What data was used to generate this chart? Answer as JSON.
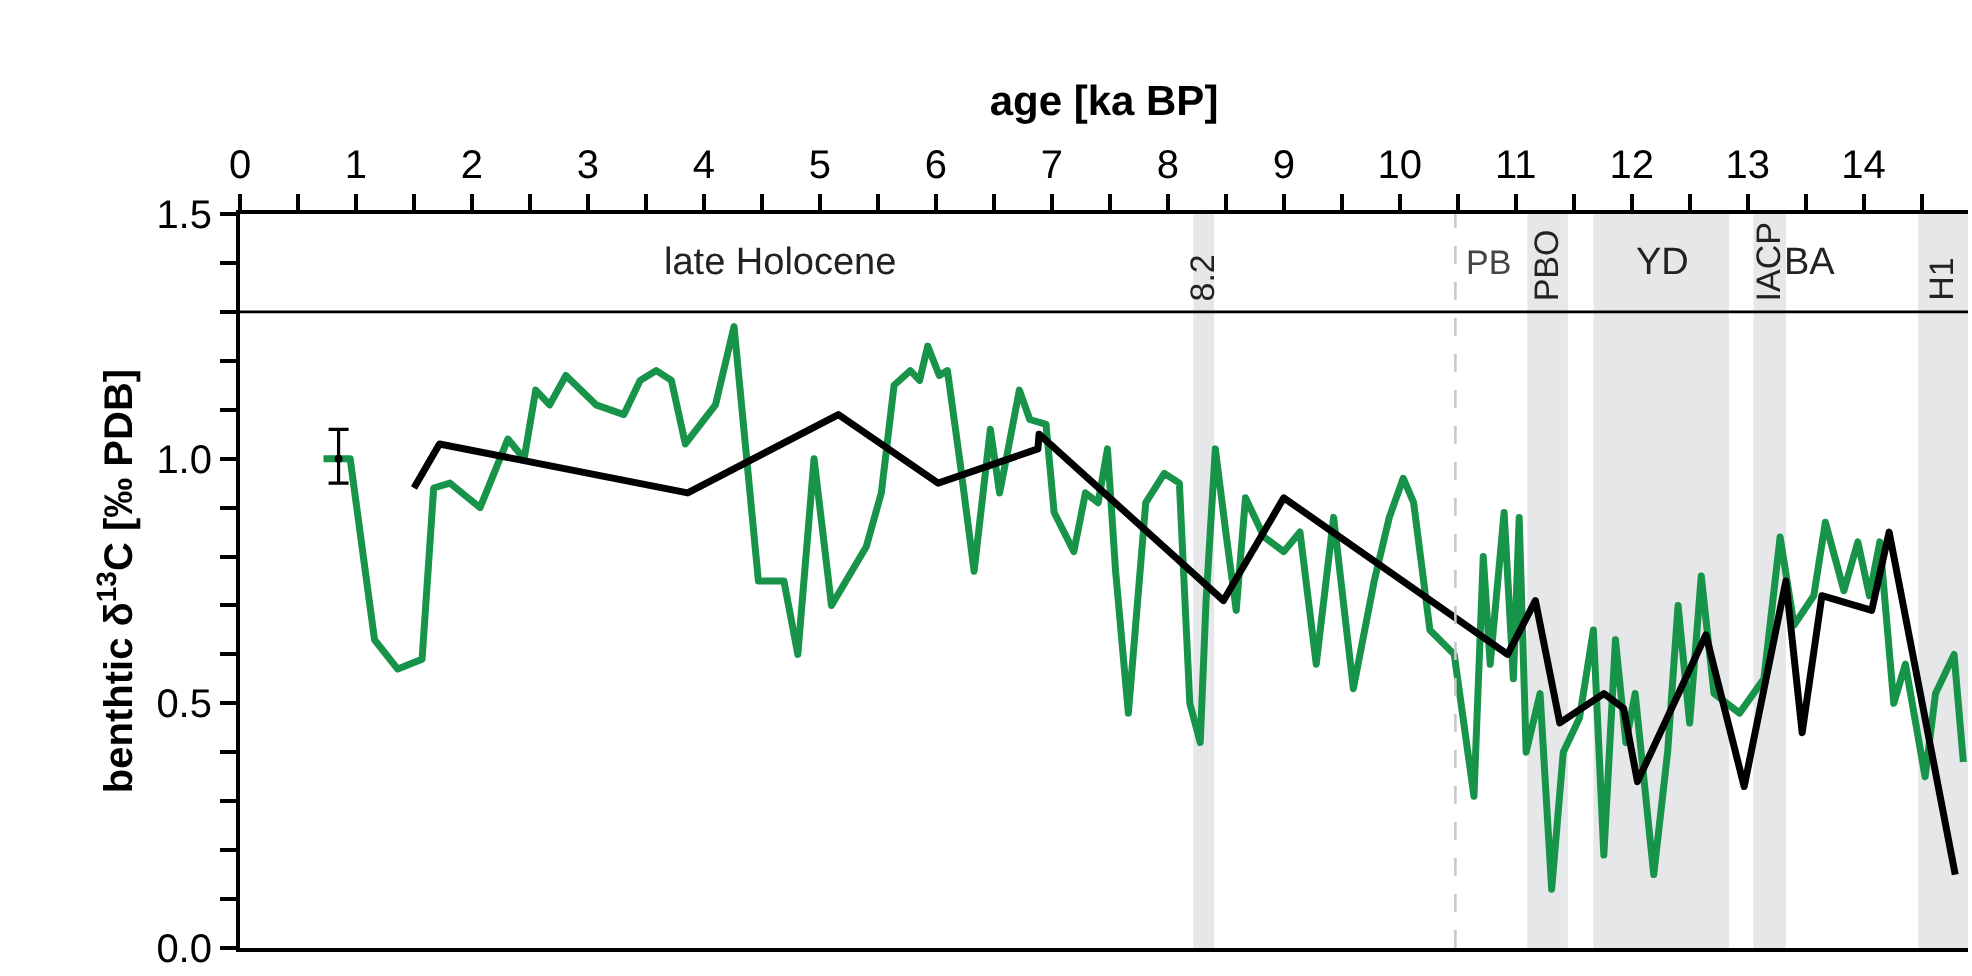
{
  "chart_data": {
    "type": "line",
    "xlabel": "age [ka BP]",
    "ylabel": "benthtic δ$^{13}$C [‰ PDB]",
    "xlim": [
      0,
      14.9
    ],
    "ylim": [
      0,
      1.5
    ],
    "xticks": [
      0,
      {
        "value": 0.5,
        "label": null
      },
      1,
      {
        "value": 1.5,
        "label": null
      },
      2,
      {
        "value": 2.5,
        "label": null
      },
      3,
      {
        "value": 3.5,
        "label": null
      },
      4,
      {
        "value": 4.5,
        "label": null
      },
      5,
      {
        "value": 5.5,
        "label": null
      },
      6,
      {
        "value": 6.5,
        "label": null
      },
      7,
      {
        "value": 7.5,
        "label": null
      },
      8,
      {
        "value": 8.5,
        "label": null
      },
      9,
      {
        "value": 9.5,
        "label": null
      },
      10,
      {
        "value": 10.5,
        "label": null
      },
      11,
      {
        "value": 11.5,
        "label": null
      },
      12,
      {
        "value": 12.5,
        "label": null
      },
      13,
      {
        "value": 13.5,
        "label": null
      },
      14,
      {
        "value": 14.5,
        "label": null
      }
    ],
    "yticks": [
      {
        "value": 0,
        "label": "0.0"
      },
      {
        "value": 0.1,
        "label": null
      },
      {
        "value": 0.2,
        "label": null
      },
      {
        "value": 0.3,
        "label": null
      },
      {
        "value": 0.4,
        "label": null
      },
      0.5,
      {
        "value": 0.6,
        "label": null
      },
      {
        "value": 0.7,
        "label": null
      },
      {
        "value": 0.8,
        "label": null
      },
      {
        "value": 0.9,
        "label": null
      },
      {
        "value": 1,
        "label": "1.0"
      },
      {
        "value": 1.1,
        "label": null
      },
      {
        "value": 1.2,
        "label": null
      },
      {
        "value": 1.3,
        "label": null
      },
      {
        "value": 1.4,
        "label": null
      },
      1.5
    ],
    "grid": false,
    "marker": "none",
    "line_style": "solid",
    "series": [
      {
        "color": "#18944a",
        "x": [
          0.72,
          0.95,
          1.16,
          1.36,
          1.57,
          1.67,
          1.81,
          2.07,
          2.31,
          2.45,
          2.55,
          2.67,
          2.81,
          3.07,
          3.31,
          3.45,
          3.59,
          3.72,
          3.84,
          4.1,
          4.26,
          4.47,
          4.69,
          4.81,
          4.95,
          5.1,
          5.4,
          5.53,
          5.64,
          5.78,
          5.86,
          5.93,
          6.03,
          6.1,
          6.21,
          6.33,
          6.47,
          6.55,
          6.64,
          6.72,
          6.81,
          6.95,
          7.02,
          7.19,
          7.29,
          7.4,
          7.48,
          7.55,
          7.66,
          7.81,
          7.97,
          8.1,
          8.19,
          8.28,
          8.33,
          8.41,
          8.5,
          8.59,
          8.67,
          8.83,
          9.0,
          9.14,
          9.28,
          9.43,
          9.6,
          9.78,
          9.91,
          10.03,
          10.12,
          10.26,
          10.47,
          10.64,
          10.72,
          10.78,
          10.9,
          10.98,
          11.03,
          11.09,
          11.21,
          11.31,
          11.41,
          11.55,
          11.67,
          11.76,
          11.86,
          11.95,
          12.03,
          12.19,
          12.31,
          12.4,
          12.5,
          12.6,
          12.71,
          12.93,
          13.14,
          13.28,
          13.4,
          13.57,
          13.67,
          13.83,
          13.95,
          14.05,
          14.14,
          14.26,
          14.36,
          14.53,
          14.62,
          14.78,
          14.86
        ],
        "values": [
          1.0,
          1.0,
          0.63,
          0.57,
          0.59,
          0.94,
          0.95,
          0.9,
          1.04,
          1.0,
          1.14,
          1.11,
          1.17,
          1.11,
          1.09,
          1.16,
          1.18,
          1.16,
          1.03,
          1.11,
          1.27,
          0.75,
          0.75,
          0.6,
          1.0,
          0.7,
          0.82,
          0.93,
          1.15,
          1.18,
          1.16,
          1.23,
          1.17,
          1.18,
          0.99,
          0.77,
          1.06,
          0.93,
          1.04,
          1.14,
          1.08,
          1.07,
          0.89,
          0.81,
          0.93,
          0.91,
          1.02,
          0.77,
          0.48,
          0.91,
          0.97,
          0.95,
          0.5,
          0.42,
          0.71,
          1.02,
          0.85,
          0.69,
          0.92,
          0.84,
          0.81,
          0.85,
          0.58,
          0.88,
          0.53,
          0.75,
          0.88,
          0.96,
          0.91,
          0.65,
          0.6,
          0.31,
          0.8,
          0.58,
          0.89,
          0.55,
          0.88,
          0.4,
          0.52,
          0.12,
          0.4,
          0.47,
          0.65,
          0.19,
          0.63,
          0.42,
          0.52,
          0.15,
          0.4,
          0.7,
          0.46,
          0.76,
          0.52,
          0.48,
          0.55,
          0.84,
          0.66,
          0.72,
          0.87,
          0.73,
          0.83,
          0.72,
          0.83,
          0.5,
          0.58,
          0.35,
          0.52,
          0.6,
          0.38
        ]
      },
      {
        "color": "#000000",
        "x": [
          1.5,
          1.72,
          3.86,
          5.16,
          6.02,
          6.88,
          6.89,
          8.48,
          9.0,
          10.93,
          11.17,
          11.38,
          11.76,
          11.93,
          12.05,
          12.64,
          12.97,
          13.33,
          13.47,
          13.64,
          14.07,
          14.22,
          14.79
        ],
        "values": [
          0.94,
          1.03,
          0.93,
          1.09,
          0.95,
          1.02,
          1.05,
          0.71,
          0.92,
          0.6,
          0.71,
          0.46,
          0.52,
          0.49,
          0.34,
          0.64,
          0.33,
          0.75,
          0.44,
          0.72,
          0.69,
          0.85,
          0.15
        ]
      },
      {
        "type": "scatter",
        "marker": "circle",
        "color": "#000000",
        "x": [
          0.85
        ],
        "values": [
          1.0
        ],
        "errors": [
          [
            0.95,
            1.06
          ]
        ]
      }
    ],
    "ref_lines": [
      {
        "axis": "y",
        "value": 1.3,
        "label": null,
        "color": "#000000",
        "line_style": "solid"
      },
      {
        "axis": "x",
        "value": 10.48,
        "label": "PB",
        "color": "#c8c8c8",
        "line_style": "dashed"
      }
    ],
    "bands": [
      {
        "axis": "x",
        "from": 8.22,
        "to": 8.4,
        "label": "8.2",
        "color": "#e6e7e9"
      },
      {
        "axis": "x",
        "from": 11.1,
        "to": 11.45,
        "label": "PBO",
        "color": "#e6e7e9"
      },
      {
        "axis": "x",
        "from": 11.67,
        "to": 12.84,
        "label": "YD",
        "color": "#e6e7e9"
      },
      {
        "axis": "x",
        "from": 13.05,
        "to": 13.33,
        "label": "IACP",
        "color": "#e6e7e9"
      },
      {
        "axis": "x",
        "from": 14.47,
        "to": 14.9,
        "label": "H1",
        "color": "#e6e7e9"
      }
    ],
    "annotations": [
      "late Holocene",
      "BA"
    ]
  }
}
